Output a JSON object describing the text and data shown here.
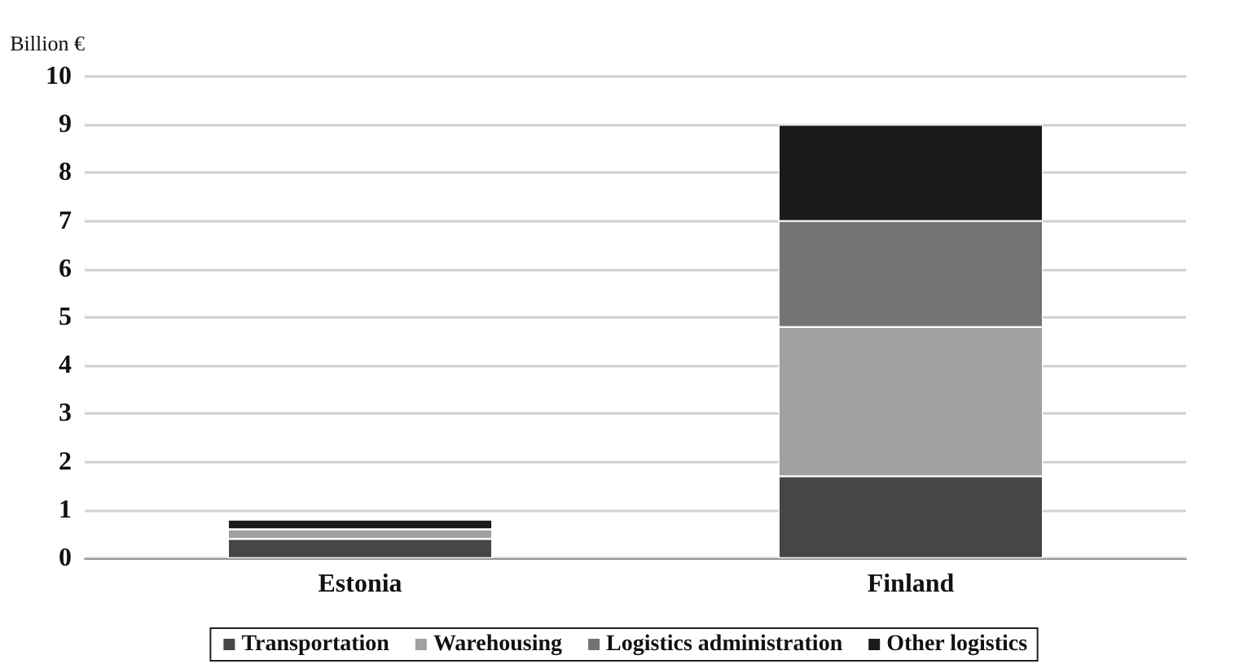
{
  "chart_data": {
    "type": "bar",
    "stacked": true,
    "ylabel": "Billion €",
    "categories": [
      "Estonia",
      "Finland"
    ],
    "series": [
      {
        "name": "Transportation",
        "color": "#464646",
        "values": [
          0.4,
          1.7
        ]
      },
      {
        "name": "Warehousing",
        "color": "#a0a0a0",
        "values": [
          0.2,
          3.1
        ]
      },
      {
        "name": "Logistics administration",
        "color": "#737373",
        "values": [
          null,
          2.2
        ]
      },
      {
        "name": "Other logistics",
        "color": "#1a1a1a",
        "values": [
          0.2,
          2.0
        ]
      }
    ],
    "ylim": [
      0,
      10
    ],
    "yticks": [
      0,
      1,
      2,
      3,
      4,
      5,
      6,
      7,
      8,
      9,
      10
    ],
    "grid": "y",
    "legend": "bottom"
  }
}
